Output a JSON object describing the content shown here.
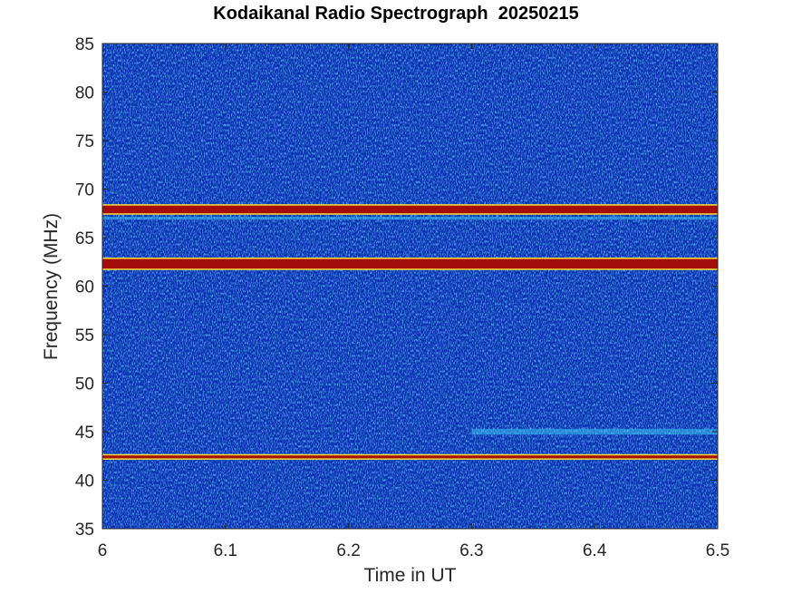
{
  "chart_data": {
    "type": "heatmap",
    "title": "Kodaikanal Radio Spectrograph  20250215",
    "xlabel": "Time in UT",
    "ylabel": "Frequency (MHz)",
    "xlim": [
      6,
      6.5
    ],
    "ylim": [
      35,
      85
    ],
    "xticks": [
      "6",
      "6.1",
      "6.2",
      "6.3",
      "6.4",
      "6.5"
    ],
    "yticks": [
      "35",
      "40",
      "45",
      "50",
      "55",
      "60",
      "65",
      "70",
      "75",
      "80",
      "85"
    ],
    "colormap": "jet",
    "grid": false,
    "background_level_color": "#0a2fb0",
    "features": [
      {
        "kind": "band",
        "freq_center": 67.9,
        "freq_width": 0.8,
        "t_start": 6.0,
        "t_end": 6.5,
        "intensity": "high"
      },
      {
        "kind": "band",
        "freq_center": 62.3,
        "freq_width": 1.0,
        "t_start": 6.0,
        "t_end": 6.5,
        "intensity": "high"
      },
      {
        "kind": "band",
        "freq_center": 42.4,
        "freq_width": 0.3,
        "t_start": 6.0,
        "t_end": 6.5,
        "intensity": "high"
      },
      {
        "kind": "band",
        "freq_center": 45.0,
        "freq_width": 0.6,
        "t_start": 6.3,
        "t_end": 6.5,
        "intensity": "low"
      },
      {
        "kind": "band",
        "freq_center": 67.0,
        "freq_width": 0.3,
        "t_start": 6.0,
        "t_end": 6.5,
        "intensity": "low"
      }
    ]
  }
}
